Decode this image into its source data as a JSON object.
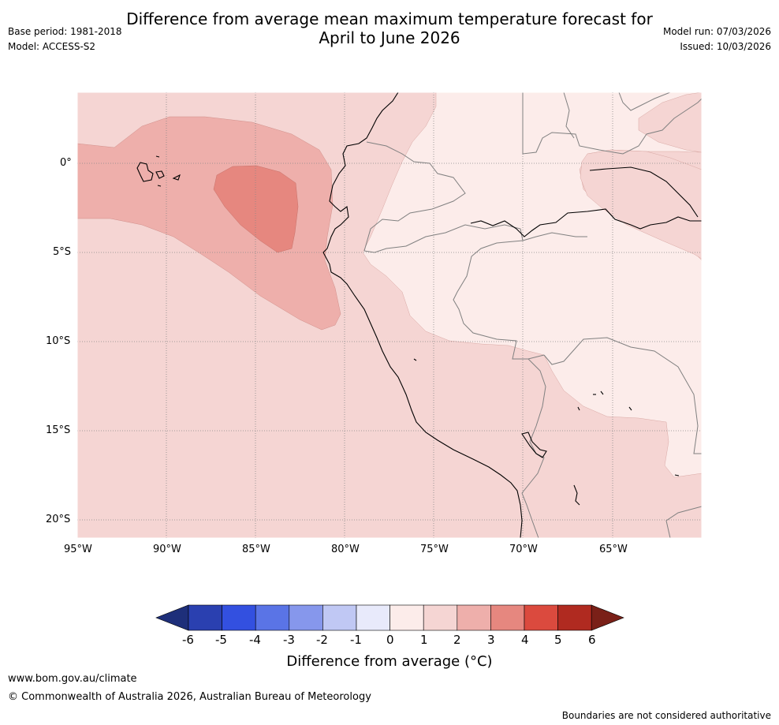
{
  "title": {
    "line1": "Difference from average mean maximum temperature forecast for",
    "line2": "April to June 2026"
  },
  "meta": {
    "base_period": "Base period: 1981-2018",
    "model": "Model: ACCESS-S2",
    "model_run": "Model run: 07/03/2026",
    "issued": "Issued: 10/03/2026"
  },
  "map": {
    "lat_labels": [
      "0°",
      "5°S",
      "10°S",
      "15°S",
      "20°S"
    ],
    "lon_labels": [
      "95°W",
      "90°W",
      "85°W",
      "80°W",
      "75°W",
      "70°W",
      "65°W"
    ],
    "anomaly_regions": [
      {
        "name": "background",
        "range": "1 to 2"
      },
      {
        "name": "eastern-interior",
        "range": "0 to 1"
      },
      {
        "name": "pacific-warm-tongue",
        "range": "2 to 3"
      },
      {
        "name": "pacific-warm-core",
        "range": "3 to 4"
      },
      {
        "name": "amazon-warm-patch",
        "range": "1 to 2"
      }
    ]
  },
  "colorbar": {
    "label": "Difference from average (°C)",
    "ticks": [
      "-6",
      "-5",
      "-4",
      "-3",
      "-2",
      "-1",
      "0",
      "1",
      "2",
      "3",
      "4",
      "5",
      "6"
    ],
    "colors": [
      "#2a40b0",
      "#3350e0",
      "#5a74e6",
      "#8697ec",
      "#c0c8f4",
      "#e8eafb",
      "#fcecea",
      "#f5d5d3",
      "#eeafab",
      "#e6877f",
      "#db4a3e",
      "#b02a20"
    ],
    "extend_low_color": "#1e2f7a",
    "extend_high_color": "#7a2018"
  },
  "footer": {
    "website": "www.bom.gov.au/climate",
    "copyright": "© Commonwealth of Australia 2026, Australian Bureau of Meteorology",
    "disclaimer": "Boundaries are not considered authoritative"
  }
}
